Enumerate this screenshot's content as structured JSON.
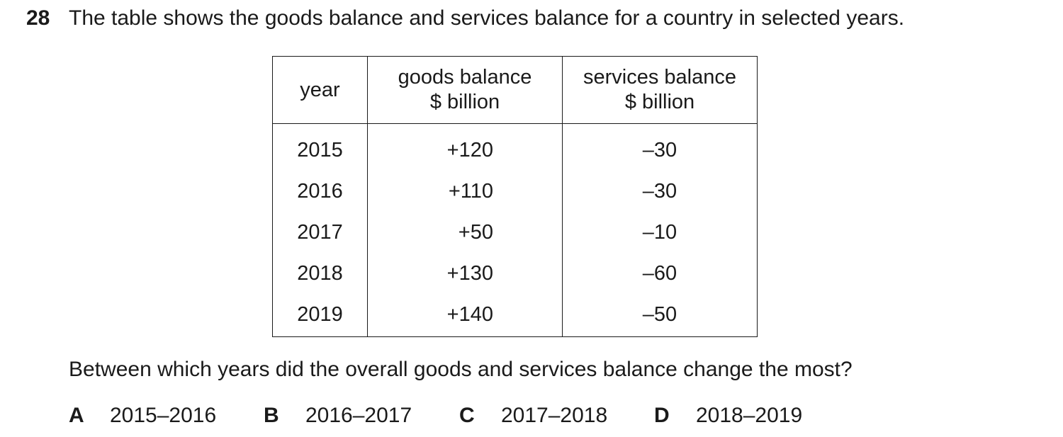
{
  "question": {
    "number": "28",
    "stem": "The table shows the goods balance and services balance for a country in selected years.",
    "prompt": "Between which years did the overall goods and services balance change the most?"
  },
  "table": {
    "headers": {
      "year": "year",
      "goods_line1": "goods balance",
      "goods_line2": "$ billion",
      "services_line1": "services balance",
      "services_line2": "$ billion"
    },
    "rows": [
      {
        "year": "2015",
        "goods": "+120",
        "services": "–30"
      },
      {
        "year": "2016",
        "goods": "+110",
        "services": "–30"
      },
      {
        "year": "2017",
        "goods": "+50",
        "services": "–10"
      },
      {
        "year": "2018",
        "goods": "+130",
        "services": "–60"
      },
      {
        "year": "2019",
        "goods": "+140",
        "services": "–50"
      }
    ]
  },
  "options": [
    {
      "letter": "A",
      "text": "2015–2016"
    },
    {
      "letter": "B",
      "text": "2016–2017"
    },
    {
      "letter": "C",
      "text": "2017–2018"
    },
    {
      "letter": "D",
      "text": "2018–2019"
    }
  ]
}
